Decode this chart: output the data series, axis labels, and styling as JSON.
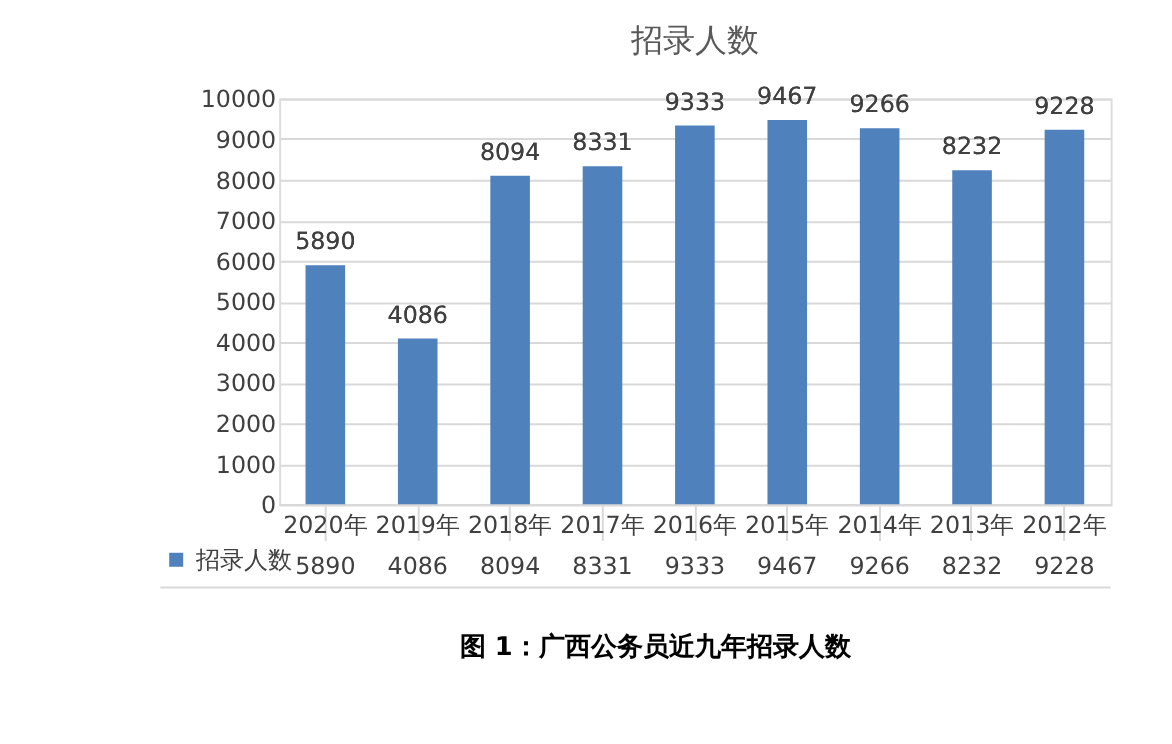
{
  "chart_data": {
    "type": "bar",
    "title": "招录人数",
    "categories": [
      "2020年",
      "2019年",
      "2018年",
      "2017年",
      "2016年",
      "2015年",
      "2014年",
      "2013年",
      "2012年"
    ],
    "series": [
      {
        "name": "招录人数",
        "color": "#4f81bd",
        "values": [
          5890,
          4086,
          8094,
          8331,
          9333,
          9467,
          9266,
          8232,
          9228
        ],
        "value_labels": [
          "5890",
          "4086",
          "8094",
          "8331",
          "9333",
          "9467",
          "9266",
          "8232",
          "9228"
        ]
      }
    ],
    "ylim": [
      0,
      10000
    ],
    "yticks": [
      0,
      1000,
      2000,
      3000,
      4000,
      5000,
      6000,
      7000,
      8000,
      9000,
      10000
    ],
    "grid": "y",
    "legend": "bottom left",
    "data_labels": true,
    "annotations": [
      "图 1：广西公务员近九年招录人数",
      "5890",
      "4086",
      "8094",
      "8331",
      "9333",
      "9467",
      "9266",
      "8232",
      "9228"
    ]
  }
}
